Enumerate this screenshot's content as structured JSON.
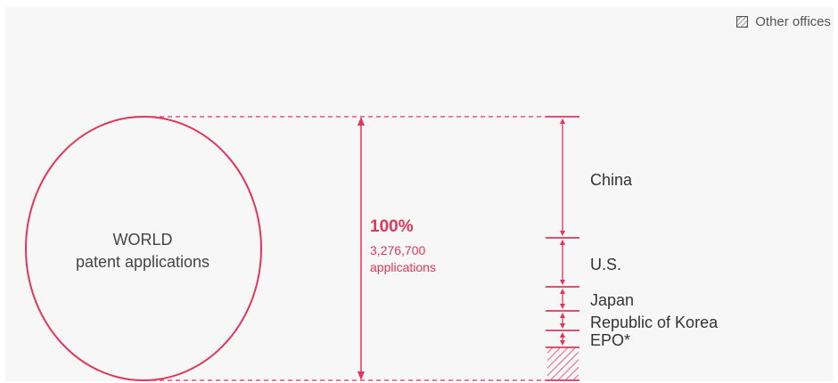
{
  "legend": {
    "label": "Other offices",
    "icon": "hatched-square-icon"
  },
  "world": {
    "line1": "WORLD",
    "line2": "patent applications"
  },
  "total": {
    "percent": "100%",
    "count": "3,276,700",
    "unit": "applications"
  },
  "offices": [
    {
      "name": "China"
    },
    {
      "name": "U.S."
    },
    {
      "name": "Japan"
    },
    {
      "name": "Republic of Korea"
    },
    {
      "name": "EPO*"
    }
  ],
  "colors": {
    "accent": "#e0365c",
    "panel": "#f7f7f7",
    "text": "#333333"
  }
}
